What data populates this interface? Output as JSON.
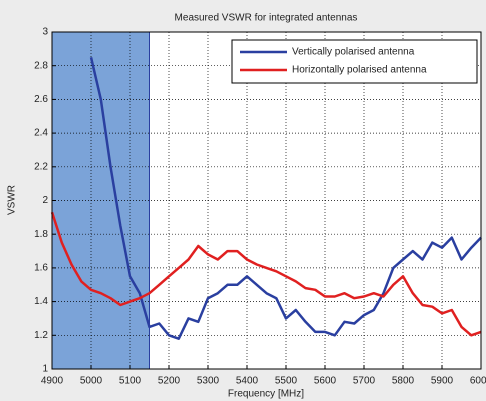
{
  "chart_data": {
    "type": "line",
    "title": "Measured VSWR for integrated antennas",
    "xlabel": "Frequency [MHz]",
    "ylabel": "VSWR",
    "x": [
      4900,
      4925,
      4950,
      4975,
      5000,
      5025,
      5050,
      5075,
      5100,
      5125,
      5150,
      5175,
      5200,
      5225,
      5250,
      5275,
      5300,
      5325,
      5350,
      5375,
      5400,
      5425,
      5450,
      5475,
      5500,
      5525,
      5550,
      5575,
      5600,
      5625,
      5650,
      5675,
      5700,
      5725,
      5750,
      5775,
      5800,
      5825,
      5850,
      5875,
      5900,
      5925,
      5950,
      5975,
      6000
    ],
    "series": [
      {
        "name": "Vertically polarised antenna",
        "color": "#2a3fa0",
        "values": [
          null,
          null,
          null,
          null,
          2.85,
          2.6,
          2.2,
          1.85,
          1.55,
          1.45,
          1.25,
          1.27,
          1.2,
          1.18,
          1.3,
          1.28,
          1.42,
          1.45,
          1.5,
          1.5,
          1.55,
          1.5,
          1.45,
          1.42,
          1.3,
          1.35,
          1.28,
          1.22,
          1.22,
          1.2,
          1.28,
          1.27,
          1.32,
          1.35,
          1.45,
          1.6,
          1.65,
          1.7,
          1.65,
          1.75,
          1.72,
          1.78,
          1.65,
          1.72,
          1.78
        ]
      },
      {
        "name": "Horizontally polarised antenna",
        "color": "#e02020",
        "values": [
          1.93,
          1.75,
          1.62,
          1.52,
          1.47,
          1.45,
          1.42,
          1.38,
          1.4,
          1.42,
          1.45,
          1.5,
          1.55,
          1.6,
          1.65,
          1.73,
          1.68,
          1.65,
          1.7,
          1.7,
          1.65,
          1.62,
          1.6,
          1.58,
          1.55,
          1.52,
          1.48,
          1.47,
          1.43,
          1.43,
          1.45,
          1.42,
          1.43,
          1.45,
          1.43,
          1.5,
          1.55,
          1.45,
          1.38,
          1.37,
          1.33,
          1.35,
          1.25,
          1.2,
          1.22
        ]
      }
    ],
    "shaded_span": {
      "xmin": 4900,
      "xmax": 5150,
      "color": "#7ba3d8"
    },
    "xlim": [
      4900,
      6000
    ],
    "xticks": [
      4900,
      5000,
      5100,
      5200,
      5300,
      5400,
      5500,
      5600,
      5700,
      5800,
      5900,
      6000
    ],
    "ylim": [
      1,
      3
    ],
    "yticks": [
      1,
      1.2,
      1.4,
      1.6,
      1.8,
      2,
      2.2,
      2.4,
      2.6,
      2.8,
      3
    ],
    "grid": true,
    "legend": "upper right"
  }
}
